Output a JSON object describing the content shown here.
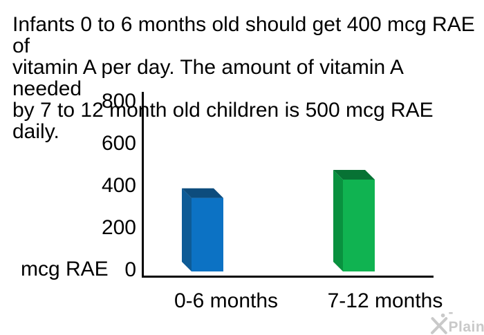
{
  "title": {
    "line1": "Infants 0 to 6 months old should get 400 mcg RAE of",
    "line2": "vitamin A per day. The amount of vitamin A needed",
    "line3": "by 7 to 12 month old children is 500 mcg RAE daily."
  },
  "chart_data": {
    "type": "bar",
    "style": "3d-column",
    "categories": [
      "0-6 months",
      "7-12 months"
    ],
    "values": [
      400,
      500
    ],
    "ylabel": "mcg RAE",
    "yticks": [
      0,
      200,
      400,
      600,
      800
    ],
    "ylim": [
      0,
      800
    ],
    "grid": false,
    "legend": false,
    "axis_color": "#000000",
    "bar_colors": [
      {
        "front": "#0C72C4",
        "side": "#0E5B96",
        "top": "#0D4C7D"
      },
      {
        "front": "#10B351",
        "side": "#09913F",
        "top": "#077234"
      }
    ]
  },
  "watermark": {
    "brand": "X-Plain",
    "label": "-Plain",
    "color": "#C9C9C9"
  }
}
